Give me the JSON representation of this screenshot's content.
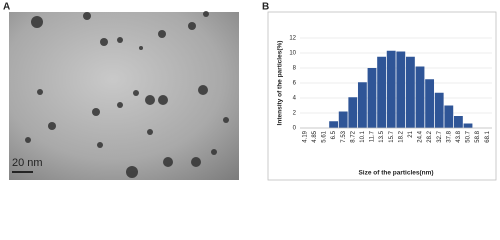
{
  "image_panel": {
    "panel_label": "A",
    "scale_bar": "20 nm"
  },
  "chart_data": {
    "type": "bar",
    "panel_label": "B",
    "x_label": "Size of the particles(nm)",
    "y_label": "Intensity of the particles(%)",
    "categories": [
      "4.19",
      "4.85",
      "5.61",
      "6.5",
      "7.53",
      "8.72",
      "10.1",
      "11.7",
      "13.5",
      "15.7",
      "18.2",
      "21",
      "24.4",
      "28.2",
      "32.7",
      "37.8",
      "43.8",
      "50.7",
      "58.8",
      "68.1"
    ],
    "values": [
      0,
      0,
      0,
      0.9,
      2.2,
      4.1,
      6.1,
      8.0,
      9.5,
      10.3,
      10.2,
      9.5,
      8.2,
      6.5,
      4.7,
      3.0,
      1.6,
      0.6,
      0,
      0
    ],
    "color": "#2f5597",
    "ylim": [
      0,
      12
    ],
    "yticks": [
      0,
      2,
      4,
      6,
      8,
      10,
      12
    ],
    "grid": true
  }
}
